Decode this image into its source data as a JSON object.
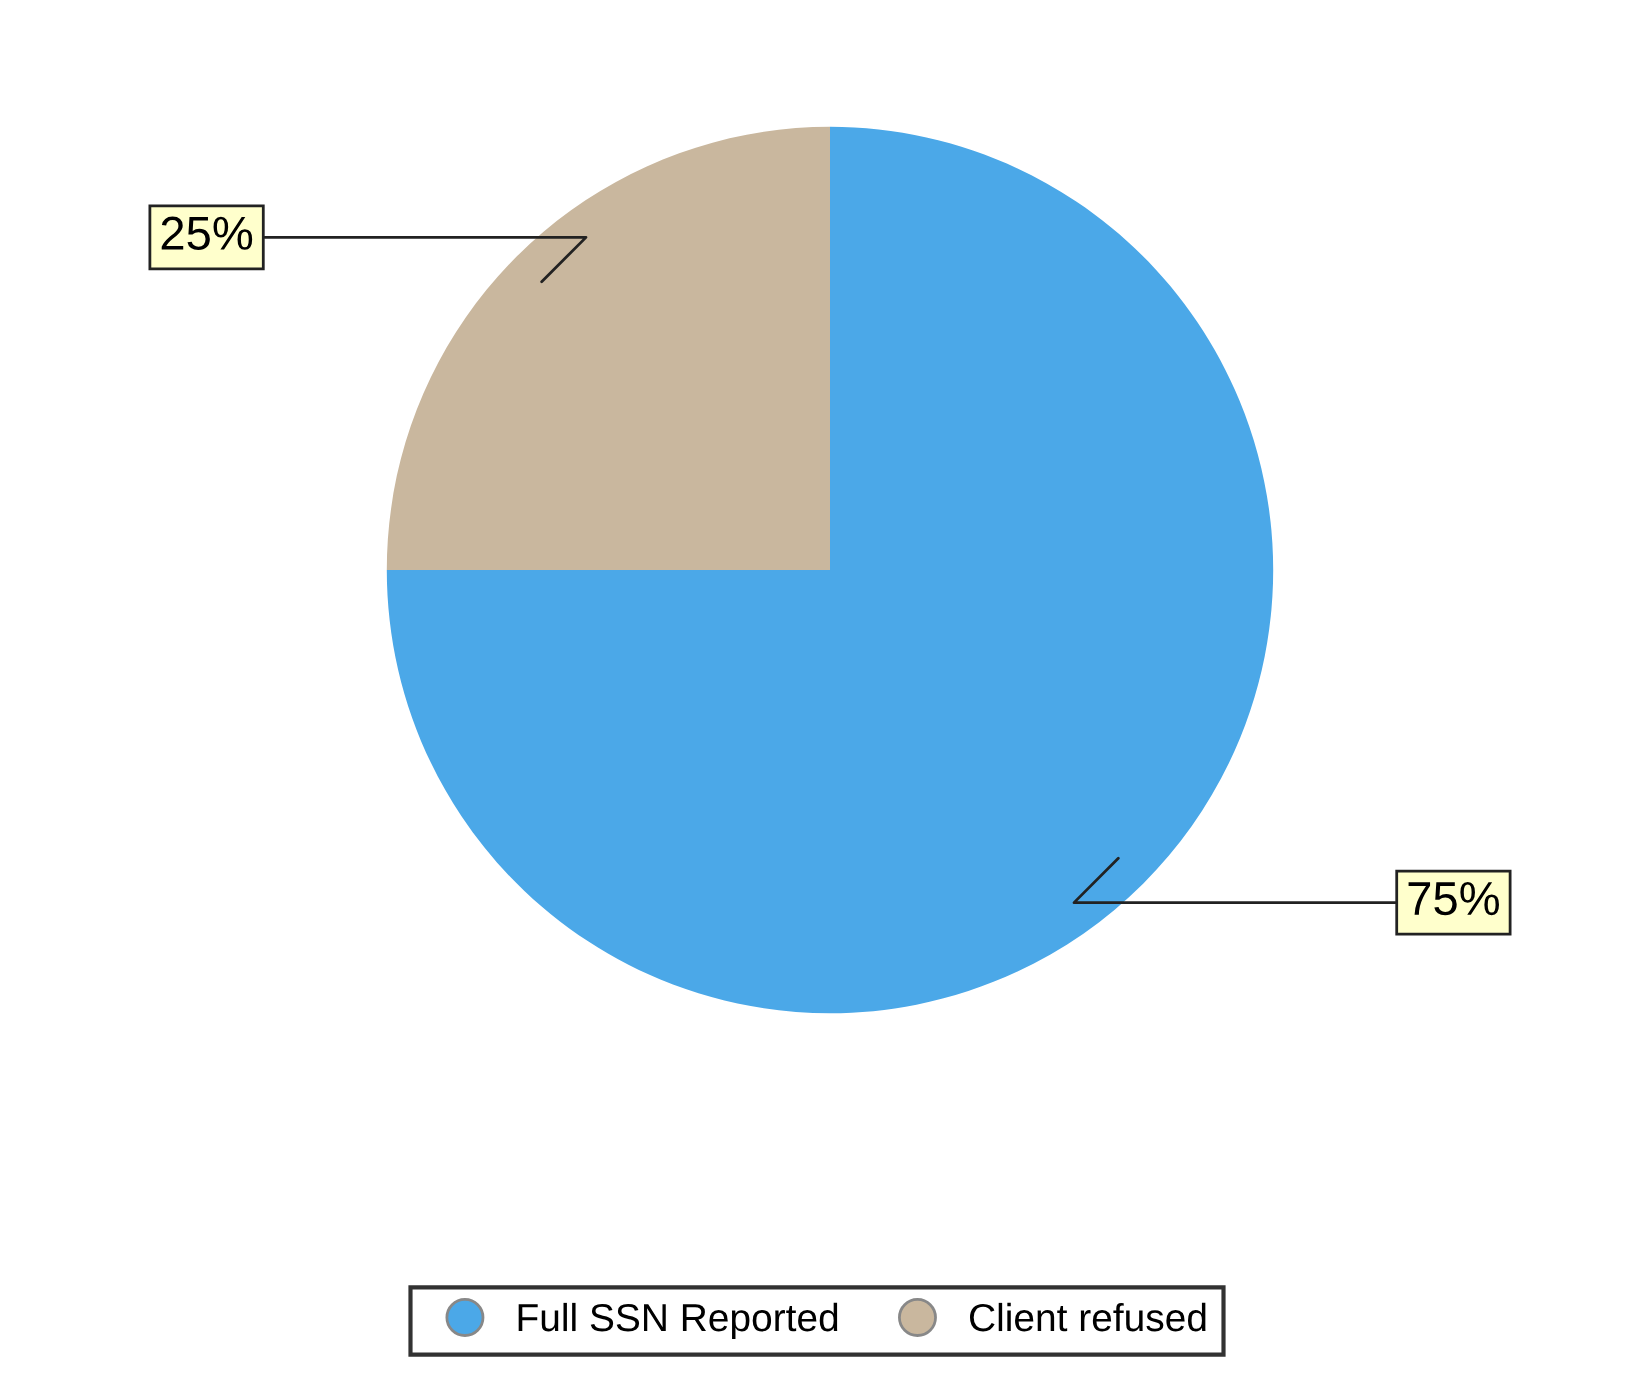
{
  "chart_data": {
    "type": "pie",
    "categories": [
      "Full SSN Reported",
      "Client refused"
    ],
    "values": [
      75,
      25
    ],
    "colors": [
      "#4ba8e8",
      "#c9b79e"
    ],
    "value_labels": [
      "75%",
      "25%"
    ],
    "legend": "bottom"
  }
}
